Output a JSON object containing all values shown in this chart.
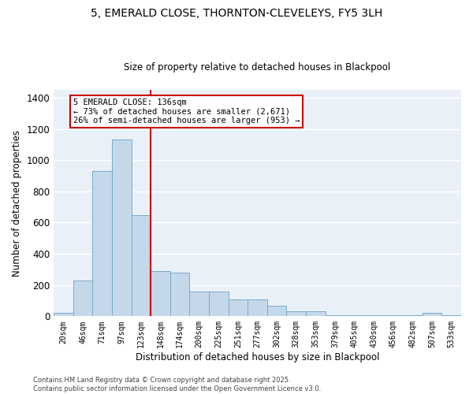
{
  "title_line1": "5, EMERALD CLOSE, THORNTON-CLEVELEYS, FY5 3LH",
  "title_line2": "Size of property relative to detached houses in Blackpool",
  "xlabel": "Distribution of detached houses by size in Blackpool",
  "ylabel": "Number of detached properties",
  "categories": [
    "20sqm",
    "46sqm",
    "71sqm",
    "97sqm",
    "123sqm",
    "148sqm",
    "174sqm",
    "200sqm",
    "225sqm",
    "251sqm",
    "277sqm",
    "302sqm",
    "328sqm",
    "353sqm",
    "379sqm",
    "405sqm",
    "430sqm",
    "456sqm",
    "482sqm",
    "507sqm",
    "533sqm"
  ],
  "values": [
    20,
    230,
    930,
    1130,
    650,
    290,
    280,
    160,
    160,
    110,
    110,
    65,
    30,
    30,
    5,
    5,
    5,
    5,
    5,
    20,
    5
  ],
  "bar_color": "#c5d8ea",
  "bar_edge_color": "#7aaac8",
  "bg_color": "#eaf0f8",
  "grid_color": "#ffffff",
  "red_line_x": 4.5,
  "annotation_line1": "5 EMERALD CLOSE: 136sqm",
  "annotation_line2": "← 73% of detached houses are smaller (2,671)",
  "annotation_line3": "26% of semi-detached houses are larger (953) →",
  "footnote_line1": "Contains HM Land Registry data © Crown copyright and database right 2025.",
  "footnote_line2": "Contains public sector information licensed under the Open Government Licence v3.0.",
  "ylim": [
    0,
    1450
  ],
  "yticks": [
    0,
    200,
    400,
    600,
    800,
    1000,
    1200,
    1400
  ]
}
